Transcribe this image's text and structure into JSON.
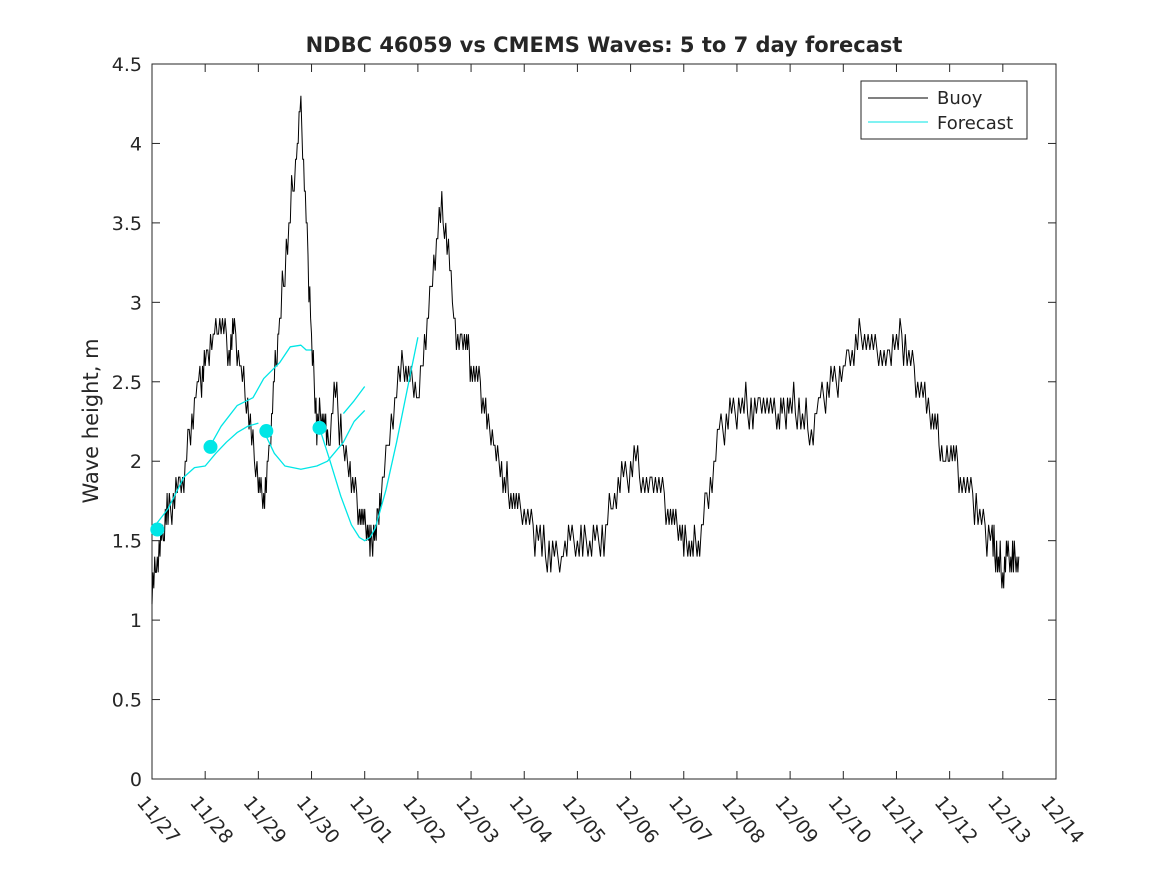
{
  "chart_data": {
    "type": "line",
    "title": "NDBC 46059 vs CMEMS Waves: 5 to 7 day forecast",
    "xlabel": "",
    "ylabel": "Wave height, m",
    "xlim": [
      0,
      17
    ],
    "ylim": [
      0,
      4.5
    ],
    "x_tick_labels": [
      "11/27",
      "11/28",
      "11/29",
      "11/30",
      "12/01",
      "12/02",
      "12/03",
      "12/04",
      "12/05",
      "12/06",
      "12/07",
      "12/08",
      "12/09",
      "12/10",
      "12/11",
      "12/12",
      "12/13",
      "12/14"
    ],
    "y_tick_labels": [
      "0",
      "0.5",
      "1",
      "1.5",
      "2",
      "2.5",
      "3",
      "3.5",
      "4",
      "4.5"
    ],
    "legend": {
      "position": "top-right",
      "entries": [
        "Buoy",
        "Forecast"
      ]
    },
    "colors": {
      "buoy": "#000000",
      "forecast": "#00e6e6",
      "axis": "#262626"
    },
    "series": [
      {
        "name": "Buoy",
        "x": [
          0,
          0.1,
          0.2,
          0.3,
          0.45,
          0.6,
          0.75,
          0.9,
          1.0,
          1.15,
          1.3,
          1.45,
          1.55,
          1.7,
          1.85,
          2.0,
          2.1,
          2.2,
          2.3,
          2.4,
          2.55,
          2.7,
          2.8,
          2.9,
          3.0,
          3.1,
          3.2,
          3.3,
          3.45,
          3.6,
          3.75,
          3.9,
          4.0,
          4.1,
          4.2,
          4.3,
          4.5,
          4.7,
          4.85,
          5.0,
          5.15,
          5.3,
          5.45,
          5.6,
          5.75,
          5.9,
          6.0,
          6.15,
          6.3,
          6.45,
          6.6,
          6.75,
          6.9,
          7.1,
          7.3,
          7.5,
          7.7,
          7.9,
          8.1,
          8.3,
          8.5,
          8.7,
          8.9,
          9.1,
          9.3,
          9.5,
          9.7,
          9.85,
          10.0,
          10.15,
          10.3,
          10.5,
          10.7,
          10.9,
          11.1,
          11.3,
          11.5,
          11.7,
          11.85,
          12.0,
          12.2,
          12.4,
          12.6,
          12.8,
          13.0,
          13.2,
          13.4,
          13.6,
          13.8,
          14.0,
          14.2,
          14.4,
          14.6,
          14.75,
          14.9,
          15.05,
          15.2,
          15.4,
          15.6,
          15.8,
          15.9,
          16.0,
          16.1,
          16.2,
          16.3
        ],
        "values": [
          1.2,
          1.4,
          1.5,
          1.7,
          1.8,
          1.9,
          2.3,
          2.5,
          2.6,
          2.8,
          2.9,
          2.7,
          2.8,
          2.5,
          2.2,
          1.9,
          1.75,
          2.0,
          2.5,
          2.9,
          3.4,
          3.9,
          4.2,
          3.5,
          2.8,
          2.2,
          2.3,
          2.1,
          2.4,
          2.1,
          1.9,
          1.7,
          1.6,
          1.5,
          1.55,
          1.8,
          2.3,
          2.6,
          2.5,
          2.4,
          2.8,
          3.3,
          3.6,
          3.2,
          2.7,
          2.8,
          2.6,
          2.5,
          2.2,
          2.1,
          1.9,
          1.8,
          1.7,
          1.6,
          1.5,
          1.4,
          1.45,
          1.5,
          1.45,
          1.5,
          1.55,
          1.8,
          1.9,
          2.0,
          1.8,
          1.9,
          1.7,
          1.6,
          1.5,
          1.45,
          1.5,
          1.9,
          2.2,
          2.3,
          2.4,
          2.3,
          2.4,
          2.25,
          2.3,
          2.4,
          2.3,
          2.2,
          2.4,
          2.5,
          2.6,
          2.7,
          2.8,
          2.7,
          2.6,
          2.8,
          2.7,
          2.5,
          2.3,
          2.2,
          2.0,
          2.1,
          1.9,
          1.8,
          1.6,
          1.5,
          1.4,
          1.3,
          1.4,
          1.35,
          1.4
        ]
      },
      {
        "name": "Forecast",
        "segments": [
          {
            "x": [
              0.0,
              0.3,
              0.6,
              0.8,
              1.0,
              1.2,
              1.4,
              1.6,
              1.8,
              2.0
            ],
            "values": [
              1.57,
              1.7,
              1.9,
              1.96,
              1.97,
              2.05,
              2.12,
              2.18,
              2.22,
              2.24
            ]
          },
          {
            "x": [
              1.1,
              1.3,
              1.6,
              1.9,
              2.1,
              2.4,
              2.6,
              2.8,
              2.9,
              3.0
            ],
            "values": [
              2.1,
              2.22,
              2.35,
              2.4,
              2.52,
              2.62,
              2.72,
              2.73,
              2.7,
              2.7
            ]
          },
          {
            "x": [
              2.1,
              2.3,
              2.5,
              2.8,
              3.1,
              3.3,
              3.6,
              3.8,
              4.0
            ],
            "values": [
              2.19,
              2.05,
              1.97,
              1.95,
              1.97,
              2.0,
              2.12,
              2.25,
              2.32
            ]
          },
          {
            "x": [
              3.15,
              3.35,
              3.55,
              3.75,
              3.9,
              4.0,
              4.1,
              4.2,
              4.4,
              4.6,
              4.8,
              5.0
            ],
            "values": [
              2.21,
              2.0,
              1.78,
              1.6,
              1.52,
              1.5,
              1.52,
              1.58,
              1.82,
              2.12,
              2.45,
              2.78
            ]
          },
          {
            "x": [
              3.6,
              3.8,
              4.0
            ],
            "values": [
              2.3,
              2.38,
              2.47
            ]
          }
        ],
        "markers": {
          "x": [
            0.1,
            1.1,
            2.15,
            3.15
          ],
          "values": [
            1.57,
            2.09,
            2.19,
            2.21
          ]
        }
      }
    ]
  }
}
